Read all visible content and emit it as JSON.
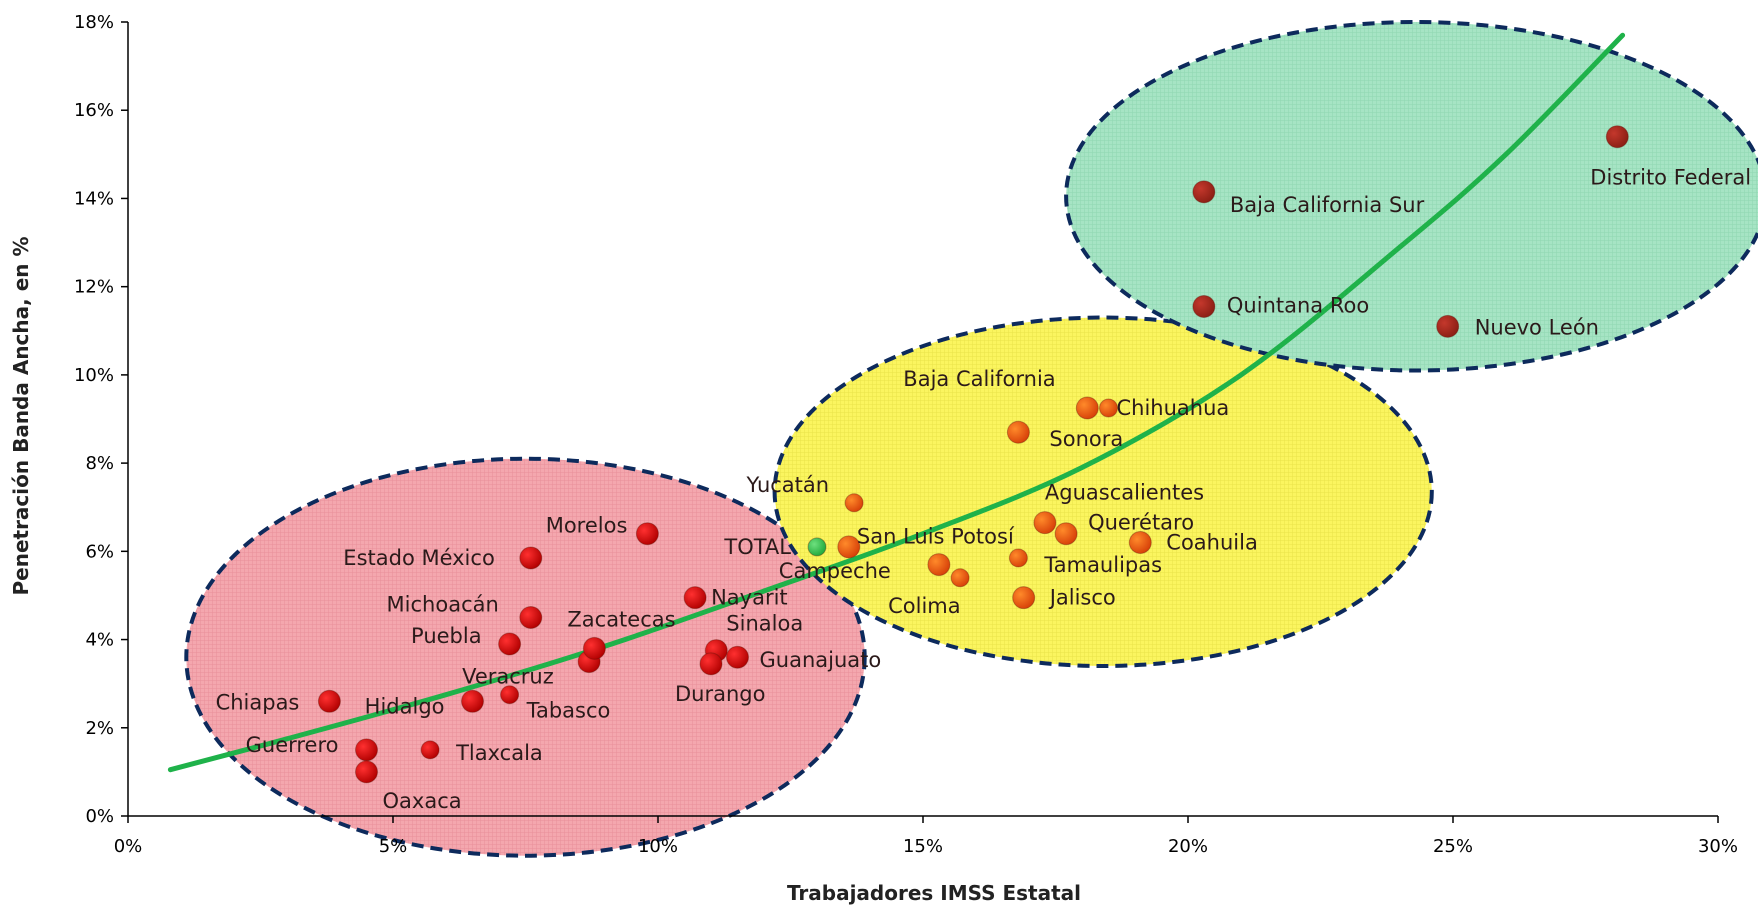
{
  "chart_data": {
    "type": "scatter",
    "title": "",
    "xlabel": "Trabajadores IMSS Estatal",
    "ylabel": "Penetración Banda Ancha, en %",
    "xlim": [
      0,
      30
    ],
    "ylim": [
      0,
      18
    ],
    "x_ticks": [
      "0%",
      "5%",
      "10%",
      "15%",
      "20%",
      "25%",
      "30%"
    ],
    "y_ticks": [
      "0%",
      "2%",
      "4%",
      "6%",
      "8%",
      "10%",
      "12%",
      "14%",
      "16%",
      "18%"
    ],
    "grid": false,
    "legend": "none",
    "colors": {
      "low_group": "#c00000",
      "mid_group": "#e8580c",
      "high_group": "#a0281e",
      "total": "#33c04c",
      "trend": "#1fb24a",
      "ellipse_border": "#0d2a5c",
      "low_fill": "#f4a7ae",
      "mid_fill": "#fbf55f",
      "high_fill": "#9ee0be"
    },
    "trendline": {
      "type": "polynomial",
      "points": [
        [
          0.8,
          1.05
        ],
        [
          3,
          1.75
        ],
        [
          6,
          2.75
        ],
        [
          9,
          3.85
        ],
        [
          12,
          5.1
        ],
        [
          15,
          6.4
        ],
        [
          18,
          7.9
        ],
        [
          21,
          10.0
        ],
        [
          24,
          12.9
        ],
        [
          26,
          15.0
        ],
        [
          28.2,
          17.7
        ]
      ]
    },
    "regions": [
      {
        "name": "low",
        "cx": 7.5,
        "cy": 3.6,
        "rx": 6.4,
        "ry": 4.5
      },
      {
        "name": "mid",
        "cx": 18.4,
        "cy": 7.35,
        "rx": 6.2,
        "ry": 3.95
      },
      {
        "name": "high",
        "cx": 24.3,
        "cy": 14.05,
        "rx": 6.6,
        "ry": 3.95
      }
    ],
    "series": [
      {
        "label": "Guerrero",
        "x": 4.5,
        "y": 1.5,
        "group": "low"
      },
      {
        "label": "Oaxaca",
        "x": 4.5,
        "y": 1.0,
        "group": "low"
      },
      {
        "label": "Tlaxcala",
        "x": 5.7,
        "y": 1.5,
        "group": "low"
      },
      {
        "label": "Chiapas",
        "x": 3.8,
        "y": 2.6,
        "group": "low"
      },
      {
        "label": "Hidalgo",
        "x": 6.5,
        "y": 2.6,
        "group": "low"
      },
      {
        "label": "Tabasco",
        "x": 7.2,
        "y": 2.75,
        "group": "low"
      },
      {
        "label": "Puebla",
        "x": 7.2,
        "y": 3.9,
        "group": "low"
      },
      {
        "label": "Veracruz",
        "x": 8.7,
        "y": 3.5,
        "group": "low"
      },
      {
        "label": "Zacatecas",
        "x": 8.8,
        "y": 3.8,
        "group": "low"
      },
      {
        "label": "Michoacán",
        "x": 7.6,
        "y": 4.5,
        "group": "low"
      },
      {
        "label": "Estado México",
        "x": 7.6,
        "y": 5.85,
        "group": "low"
      },
      {
        "label": "Morelos",
        "x": 9.8,
        "y": 6.4,
        "group": "low"
      },
      {
        "label": "Nayarit",
        "x": 10.7,
        "y": 4.95,
        "group": "low"
      },
      {
        "label": "Sinaloa",
        "x": 11.1,
        "y": 3.75,
        "group": "low"
      },
      {
        "label": "Durango",
        "x": 11.0,
        "y": 3.45,
        "group": "low"
      },
      {
        "label": "Guanajuato",
        "x": 11.5,
        "y": 3.6,
        "group": "low"
      },
      {
        "label": "TOTAL",
        "x": 13.0,
        "y": 6.1,
        "group": "total"
      },
      {
        "label": "Campeche",
        "x": 13.6,
        "y": 6.1,
        "group": "mid"
      },
      {
        "label": "Yucatán",
        "x": 13.7,
        "y": 7.1,
        "group": "mid"
      },
      {
        "label": "San Luis Potosí",
        "x": 15.3,
        "y": 5.7,
        "group": "mid"
      },
      {
        "label": "Colima",
        "x": 15.7,
        "y": 5.4,
        "group": "mid"
      },
      {
        "label": "Tamaulipas",
        "x": 16.8,
        "y": 5.85,
        "group": "mid"
      },
      {
        "label": "Jalisco",
        "x": 16.9,
        "y": 4.95,
        "group": "mid"
      },
      {
        "label": "Sonora",
        "x": 16.8,
        "y": 8.7,
        "group": "mid"
      },
      {
        "label": "Baja California",
        "x": 18.1,
        "y": 9.25,
        "group": "mid"
      },
      {
        "label": "Chihuahua",
        "x": 18.5,
        "y": 9.25,
        "group": "mid"
      },
      {
        "label": "Aguascalientes",
        "x": 17.3,
        "y": 6.65,
        "group": "mid"
      },
      {
        "label": "Querétaro",
        "x": 17.7,
        "y": 6.4,
        "group": "mid"
      },
      {
        "label": "Coahuila",
        "x": 19.1,
        "y": 6.2,
        "group": "mid"
      },
      {
        "label": "Baja California Sur",
        "x": 20.3,
        "y": 14.15,
        "group": "high"
      },
      {
        "label": "Quintana Roo",
        "x": 20.3,
        "y": 11.55,
        "group": "high"
      },
      {
        "label": "Nuevo León",
        "x": 24.9,
        "y": 11.1,
        "group": "high"
      },
      {
        "label": "Distrito Federal",
        "x": 28.1,
        "y": 15.4,
        "group": "high"
      }
    ]
  }
}
